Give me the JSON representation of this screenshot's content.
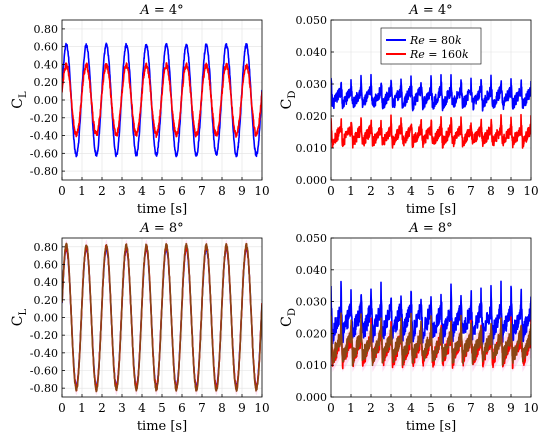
{
  "chart_data": [
    {
      "type": "line",
      "title": "A = 4°",
      "title_parts": [
        "A",
        " = 4°"
      ],
      "xlabel": "time [s]",
      "ylabel": "C",
      "ylabel_sub": "L",
      "xlim": [
        0,
        10
      ],
      "ylim": [
        -0.9,
        0.9
      ],
      "xticks": [
        0,
        1,
        2,
        3,
        4,
        5,
        6,
        7,
        8,
        9,
        10
      ],
      "yticks": [
        -0.8,
        -0.6,
        -0.4,
        -0.2,
        0,
        0.2,
        0.4,
        0.6,
        0.8
      ],
      "ytick_labels": [
        "-0.80",
        "-0.60",
        "-0.40",
        "-0.20",
        "0.00",
        "0.20",
        "0.40",
        "0.60",
        "0.80"
      ],
      "grid": true,
      "series": [
        {
          "color": "#0000ff",
          "model": "sine",
          "frequency_hz": 1.0,
          "amplitude": 0.62,
          "offset": 0.0,
          "noise": 0.02
        },
        {
          "color": "#ff0000",
          "model": "sine",
          "frequency_hz": 1.0,
          "amplitude": 0.39,
          "offset": 0.0,
          "noise": 0.03
        }
      ]
    },
    {
      "type": "line",
      "title": "A = 4°",
      "title_parts": [
        "A",
        " = 4°"
      ],
      "xlabel": "time [s]",
      "ylabel": "C",
      "ylabel_sub": "D",
      "xlim": [
        0,
        10
      ],
      "ylim": [
        0,
        0.05
      ],
      "xticks": [
        0,
        1,
        2,
        3,
        4,
        5,
        6,
        7,
        8,
        9,
        10
      ],
      "yticks": [
        0,
        0.01,
        0.02,
        0.03,
        0.04,
        0.05
      ],
      "ytick_labels": [
        "0.000",
        "0.010",
        "0.020",
        "0.030",
        "0.040",
        "0.050"
      ],
      "grid": true,
      "legend": {
        "position": "top-center"
      },
      "series": [
        {
          "name": "Re = 80k",
          "name_parts": [
            "Re",
            " = 80",
            "k"
          ],
          "color": "#0000ff",
          "model": "sawtooth",
          "frequency_hz": 2.0,
          "base": 0.0265,
          "amplitude": 0.004,
          "noise": 0.0018
        },
        {
          "name": "Re = 160k",
          "name_parts": [
            "Re",
            " = 160",
            "k"
          ],
          "color": "#ff0000",
          "model": "sawtooth",
          "frequency_hz": 2.0,
          "base": 0.0145,
          "amplitude": 0.0035,
          "noise": 0.0018
        }
      ]
    },
    {
      "type": "line",
      "title": "A = 8°",
      "title_parts": [
        "A",
        " = 8°"
      ],
      "xlabel": "time [s]",
      "ylabel": "C",
      "ylabel_sub": "L",
      "xlim": [
        0,
        10
      ],
      "ylim": [
        -0.9,
        0.9
      ],
      "xticks": [
        0,
        1,
        2,
        3,
        4,
        5,
        6,
        7,
        8,
        9,
        10
      ],
      "yticks": [
        -0.8,
        -0.6,
        -0.4,
        -0.2,
        0,
        0.2,
        0.4,
        0.6,
        0.8
      ],
      "ytick_labels": [
        "-0.80",
        "-0.60",
        "-0.40",
        "-0.20",
        "0.00",
        "0.20",
        "0.40",
        "0.60",
        "0.80"
      ],
      "grid": true,
      "series": [
        {
          "color": "#ff66cc",
          "model": "band",
          "frequency_hz": 1.0,
          "amplitude": 0.8,
          "offset": 0.0,
          "band_halfwidth": 0.08
        },
        {
          "color": "#0000ff",
          "model": "sine",
          "frequency_hz": 1.0,
          "amplitude": 0.78,
          "offset": 0.0,
          "noise": 0.02
        },
        {
          "color": "#ff0000",
          "model": "sine",
          "frequency_hz": 1.0,
          "amplitude": 0.8,
          "offset": 0.0,
          "noise": 0.03
        },
        {
          "color": "#8b4513",
          "model": "sine",
          "frequency_hz": 1.0,
          "amplitude": 0.82,
          "offset": 0.0,
          "noise": 0.02
        }
      ]
    },
    {
      "type": "line",
      "title": "A = 8°",
      "title_parts": [
        "A",
        " = 8°"
      ],
      "xlabel": "time [s]",
      "ylabel": "C",
      "ylabel_sub": "D",
      "xlim": [
        0,
        10
      ],
      "ylim": [
        0,
        0.05
      ],
      "xticks": [
        0,
        1,
        2,
        3,
        4,
        5,
        6,
        7,
        8,
        9,
        10
      ],
      "yticks": [
        0,
        0.01,
        0.02,
        0.03,
        0.04,
        0.05
      ],
      "ytick_labels": [
        "0.000",
        "0.010",
        "0.020",
        "0.030",
        "0.040",
        "0.050"
      ],
      "grid": true,
      "series": [
        {
          "color": "#ff66cc",
          "model": "band",
          "frequency_hz": 2.0,
          "base": 0.016,
          "amplitude": 0.004,
          "band_halfwidth": 0.005
        },
        {
          "color": "#0000ff",
          "model": "sawtooth",
          "frequency_hz": 2.0,
          "base": 0.025,
          "amplitude": 0.007,
          "noise": 0.003
        },
        {
          "color": "#ff0000",
          "model": "sawtooth",
          "frequency_hz": 2.0,
          "base": 0.016,
          "amplitude": 0.006,
          "noise": 0.0025
        },
        {
          "color": "#8b4513",
          "model": "sawtooth",
          "frequency_hz": 2.0,
          "base": 0.017,
          "amplitude": 0.006,
          "noise": 0.0025
        }
      ]
    }
  ]
}
